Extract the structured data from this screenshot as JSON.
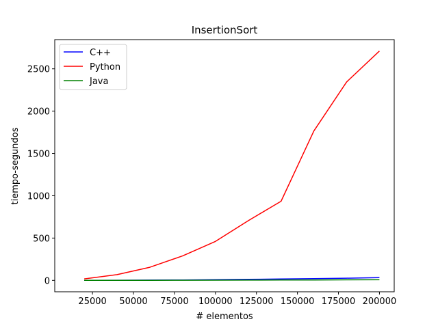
{
  "chart_data": {
    "type": "line",
    "title": "InsertionSort",
    "xlabel": "# elementos",
    "ylabel": "tiempo-segundos",
    "xlim": [
      2000,
      209000
    ],
    "ylim": [
      -135,
      2845
    ],
    "xticks": [
      25000,
      50000,
      75000,
      100000,
      125000,
      150000,
      175000,
      200000
    ],
    "yticks": [
      0,
      500,
      1000,
      1500,
      2000,
      2500
    ],
    "grid": false,
    "legend_position": "top-left",
    "x": [
      20000,
      40000,
      60000,
      80000,
      100000,
      120000,
      140000,
      160000,
      180000,
      200000
    ],
    "series": [
      {
        "name": "C++",
        "color": "#0000ff",
        "values": [
          0.5,
          1.5,
          3,
          5,
          8,
          12,
          16,
          21,
          26,
          32
        ]
      },
      {
        "name": "Python",
        "color": "#ff0000",
        "values": [
          18,
          68,
          155,
          290,
          460,
          705,
          935,
          1765,
          2345,
          2710
        ]
      },
      {
        "name": "Java",
        "color": "#008000",
        "values": [
          0.2,
          0.5,
          1,
          1.5,
          2.5,
          3,
          4,
          5,
          6,
          7
        ]
      }
    ]
  }
}
